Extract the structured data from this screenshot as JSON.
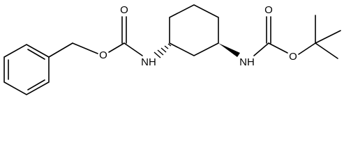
{
  "molecule": {
    "atom_labels": [
      "O",
      "O",
      "NH",
      "NH",
      "O",
      "O"
    ]
  }
}
